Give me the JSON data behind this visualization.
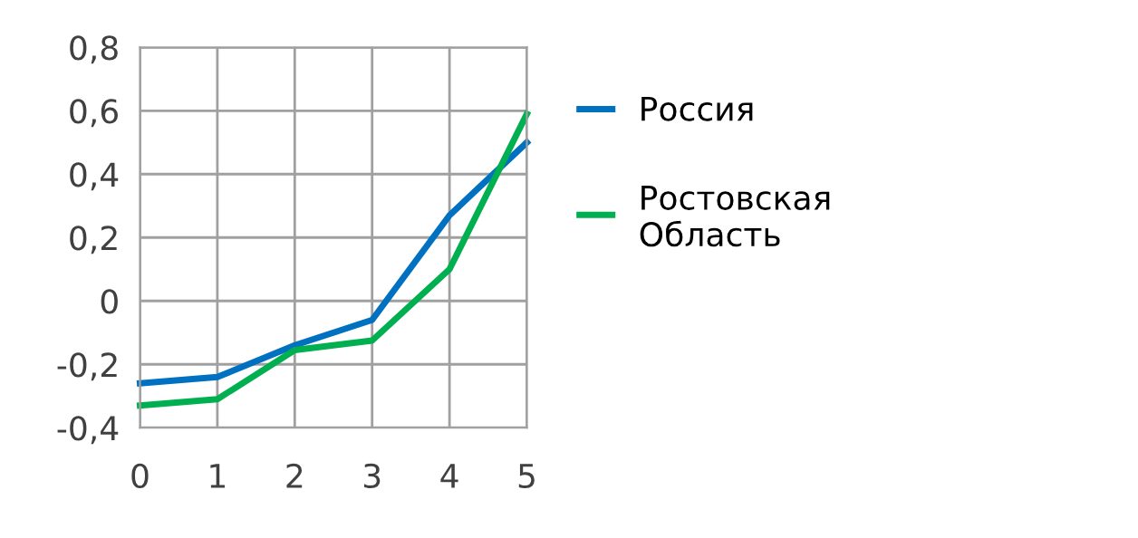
{
  "chart_data": {
    "type": "line",
    "x": [
      0,
      1,
      2,
      3,
      4,
      5
    ],
    "series": [
      {
        "name": "Россия",
        "color": "#0070c0",
        "values": [
          -0.26,
          -0.24,
          -0.14,
          -0.06,
          0.27,
          0.5
        ]
      },
      {
        "name": "Ростовская Область",
        "color": "#00b050",
        "values": [
          -0.33,
          -0.31,
          -0.155,
          -0.125,
          0.1,
          0.59
        ]
      }
    ],
    "xlim": [
      0,
      5
    ],
    "xticks": [
      0,
      1,
      2,
      3,
      4,
      5
    ],
    "ylim": [
      -0.4,
      0.8
    ],
    "yticks": [
      {
        "value": -0.4,
        "label": "-0,4"
      },
      {
        "value": -0.2,
        "label": "-0,2"
      },
      {
        "value": 0,
        "label": "0"
      },
      {
        "value": 0.2,
        "label": "0,2"
      },
      {
        "value": 0.4,
        "label": "0,4"
      },
      {
        "value": 0.6,
        "label": "0,6"
      },
      {
        "value": 0.8,
        "label": "0,8"
      }
    ],
    "grid": true,
    "legend": "right",
    "marker": "none",
    "line_style": "solid"
  }
}
